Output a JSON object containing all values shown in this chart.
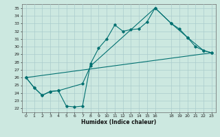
{
  "xlabel": "Humidex (Indice chaleur)",
  "bg_color": "#cce8e0",
  "line_color": "#007070",
  "grid_color": "#aacccc",
  "xlim": [
    -0.5,
    23.5
  ],
  "ylim": [
    21.5,
    35.5
  ],
  "xticks": [
    0,
    1,
    2,
    3,
    4,
    5,
    6,
    7,
    8,
    9,
    10,
    11,
    12,
    13,
    14,
    15,
    16,
    18,
    19,
    20,
    21,
    22,
    23
  ],
  "yticks": [
    22,
    23,
    24,
    25,
    26,
    27,
    28,
    29,
    30,
    31,
    32,
    33,
    34,
    35
  ],
  "line1_x": [
    0,
    1,
    2,
    3,
    4,
    5,
    6,
    7,
    8,
    9,
    10,
    11,
    12,
    13,
    14,
    15,
    16,
    18,
    19,
    20,
    21,
    22,
    23
  ],
  "line1_y": [
    26.0,
    24.7,
    23.7,
    24.2,
    24.3,
    22.3,
    22.2,
    22.3,
    27.8,
    29.8,
    31.0,
    32.8,
    32.0,
    32.2,
    32.3,
    33.2,
    35.0,
    33.0,
    32.3,
    31.2,
    30.0,
    29.5,
    29.2
  ],
  "line2_x": [
    0,
    1,
    2,
    3,
    4,
    7,
    8,
    16,
    18,
    20,
    22,
    23
  ],
  "line2_y": [
    26.0,
    24.7,
    23.7,
    24.2,
    24.3,
    25.2,
    27.5,
    35.0,
    33.0,
    31.2,
    29.5,
    29.2
  ],
  "line3_x": [
    0,
    23
  ],
  "line3_y": [
    26.0,
    29.2
  ]
}
